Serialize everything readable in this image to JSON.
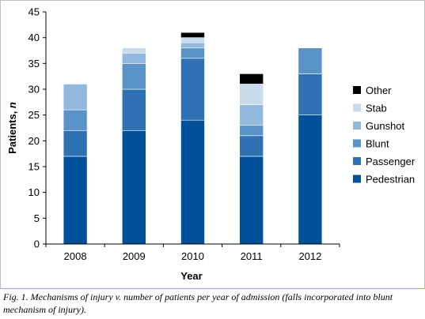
{
  "chart_data": {
    "type": "bar",
    "stacked": true,
    "categories": [
      "2008",
      "2009",
      "2010",
      "2011",
      "2012"
    ],
    "series": [
      {
        "name": "Pedestrian",
        "values": [
          17,
          22,
          24,
          17,
          25
        ],
        "color": "#00509a"
      },
      {
        "name": "Passenger",
        "values": [
          5,
          8,
          12,
          4,
          8
        ],
        "color": "#2f72b4"
      },
      {
        "name": "Blunt",
        "values": [
          4,
          5,
          2,
          2,
          5
        ],
        "color": "#5a93c8"
      },
      {
        "name": "Gunshot",
        "values": [
          5,
          2,
          1,
          4,
          0
        ],
        "color": "#93b8dd"
      },
      {
        "name": "Stab",
        "values": [
          0,
          1,
          1,
          4,
          0
        ],
        "color": "#c9dcee"
      },
      {
        "name": "Other",
        "values": [
          0,
          0,
          1,
          2,
          0
        ],
        "color": "#000000"
      }
    ],
    "ylim": [
      0,
      45
    ],
    "yticks": [
      "0",
      "5",
      "10",
      "15",
      "20",
      "25",
      "30",
      "35",
      "40",
      "45"
    ],
    "xlabel": "Year",
    "ylabel_main": "Patients, ",
    "ylabel_italic": "n",
    "legend_placement": "right",
    "legend_order": [
      "Other",
      "Stab",
      "Gunshot",
      "Blunt",
      "Passenger",
      "Pedestrian"
    ],
    "grid": false
  },
  "caption": "Fig. 1. Mechanisms of injury v. number of patients per year of admission (falls incorporated into blunt mechanism of injury)."
}
